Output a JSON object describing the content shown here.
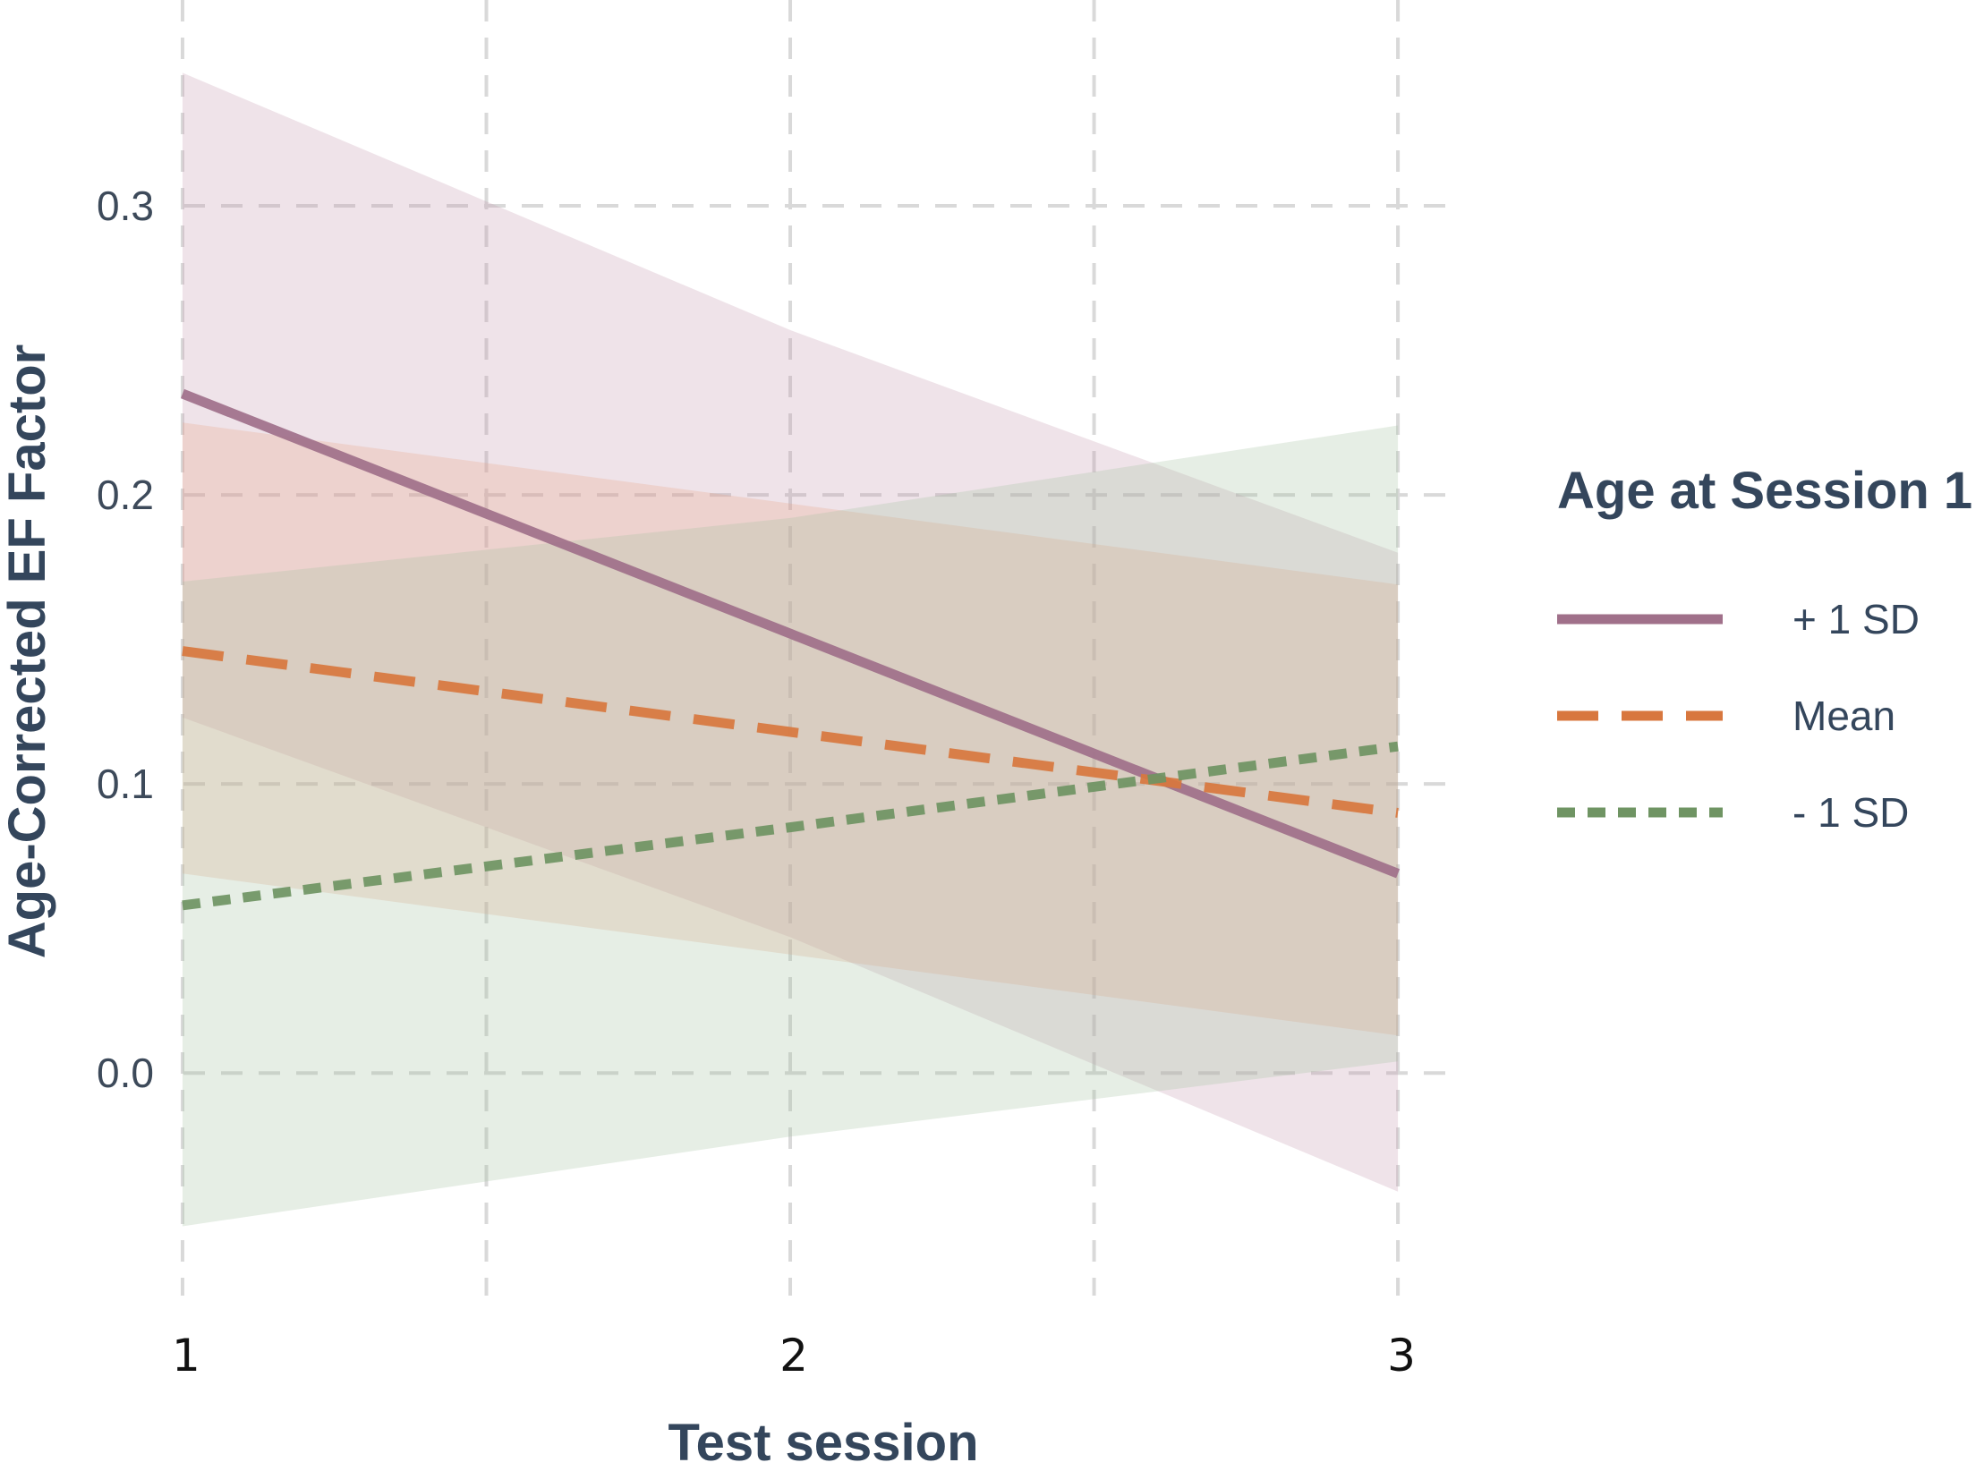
{
  "chart_data": {
    "type": "line",
    "xlabel": "Test session",
    "ylabel": "Age-Corrected EF Factor",
    "x": [
      1,
      2,
      3
    ],
    "x_ticks": [
      "1",
      "2",
      "3"
    ],
    "y_ticks": [
      "0.0",
      "0.1",
      "0.2",
      "0.3"
    ],
    "xlim": [
      0.95,
      3.1
    ],
    "ylim": [
      -0.077,
      0.365
    ],
    "grid": true,
    "legend": {
      "title": "Age at Session 1",
      "placement": "right"
    },
    "series": [
      {
        "name": "+ 1 SD",
        "style": "solid",
        "color": "#a0708a",
        "band_color": "#c79bb0",
        "values": [
          0.235,
          0.152,
          0.069
        ],
        "lower": [
          0.123,
          0.047,
          -0.041
        ],
        "upper": [
          0.346,
          0.257,
          0.18
        ]
      },
      {
        "name": "Mean",
        "style": "dashed",
        "color": "#d8773e",
        "band_color": "#e9a487",
        "values": [
          0.146,
          0.118,
          0.09
        ],
        "lower": [
          0.069,
          0.041,
          0.013
        ],
        "upper": [
          0.225,
          0.197,
          0.169
        ]
      },
      {
        "name": "- 1 SD",
        "style": "dotted",
        "color": "#6f9463",
        "band_color": "#a6c1a1",
        "values": [
          0.058,
          0.085,
          0.113
        ],
        "lower": [
          -0.053,
          -0.022,
          0.004
        ],
        "upper": [
          0.17,
          0.192,
          0.224
        ]
      }
    ]
  }
}
